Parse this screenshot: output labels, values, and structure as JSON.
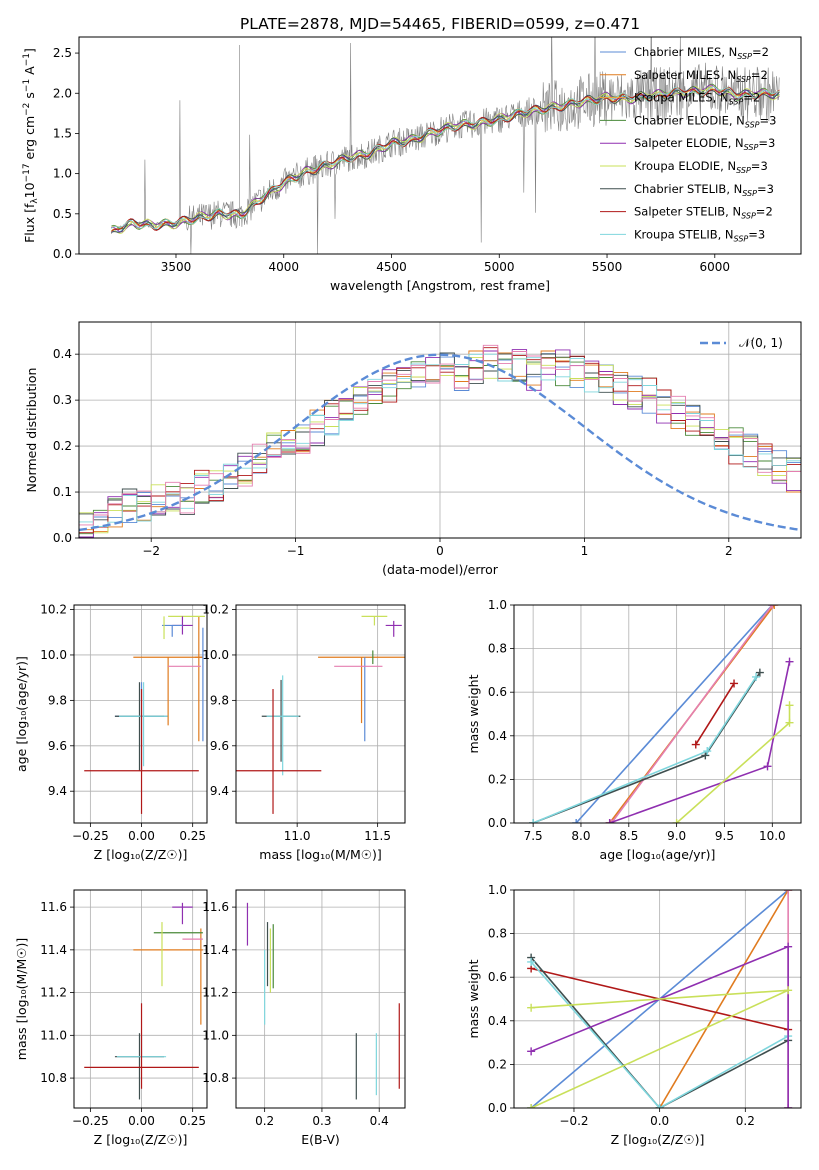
{
  "figure": {
    "title": "PLATE=2878, MJD=54465, FIBERID=0599, z=0.471"
  },
  "colors": {
    "blue": "#5b8bd6",
    "orange": "#e07b1f",
    "orange2": "#f0a63a",
    "green": "#4a8a3a",
    "purple": "#8f2fb0",
    "yellowgreen": "#c9e05a",
    "dark": "#3f4f4f",
    "red": "#b01818",
    "cyan": "#7fd6dd",
    "pink": "#e47fb0",
    "gray": "#808080",
    "dashed": "#5b8bd6"
  },
  "chart_data": [
    {
      "id": "spectrum",
      "type": "line",
      "title": "PLATE=2878, MJD=54465, FIBERID=0599, z=0.471",
      "xlabel": "wavelength [Angstrom, rest frame]",
      "ylabel_parts": {
        "a": "Flux [f",
        "b": "λ",
        "c": "10",
        "d": "−17",
        "e": " erg cm",
        "f": "−2",
        "g": " s",
        "h": "−1",
        "i": " A",
        "j": "−1",
        "k": "]"
      },
      "xlim": [
        3050,
        6400
      ],
      "ylim": [
        0,
        2.7
      ],
      "xticks": [
        3500,
        4000,
        4500,
        5000,
        5500,
        6000
      ],
      "yticks": [
        0.0,
        0.5,
        1.0,
        1.5,
        2.0,
        2.5
      ],
      "xtick_labels": [
        "3500",
        "4000",
        "4500",
        "5000",
        "5500",
        "6000"
      ],
      "ytick_labels": [
        "0.0",
        "0.5",
        "1.0",
        "1.5",
        "2.0",
        "2.5"
      ],
      "legend_placement": "upper right",
      "continuum": {
        "x": [
          3200,
          3300,
          3400,
          3500,
          3600,
          3700,
          3800,
          3900,
          4000,
          4100,
          4200,
          4300,
          4400,
          4500,
          4600,
          4700,
          4800,
          4900,
          5000,
          5100,
          5200,
          5300,
          5400,
          5500,
          5600,
          5700,
          5800,
          5900,
          6000,
          6100,
          6200,
          6300
        ],
        "y": [
          0.28,
          0.38,
          0.36,
          0.38,
          0.45,
          0.5,
          0.48,
          0.7,
          0.88,
          1.02,
          1.1,
          1.2,
          1.25,
          1.38,
          1.42,
          1.52,
          1.6,
          1.62,
          1.68,
          1.75,
          1.8,
          1.85,
          1.9,
          1.95,
          1.93,
          1.97,
          2.0,
          2.02,
          2.05,
          1.98,
          2.0,
          1.98
        ]
      },
      "series": [
        {
          "name": "Chabrier MILES",
          "nssp": "2",
          "color": "#5b8bd6"
        },
        {
          "name": "Salpeter MILES",
          "nssp": "2",
          "color": "#e07b1f"
        },
        {
          "name": "Kroupa MILES",
          "nssp": "2",
          "color": "#f0a63a"
        },
        {
          "name": "Chabrier ELODIE",
          "nssp": "3",
          "color": "#4a8a3a"
        },
        {
          "name": "Salpeter ELODIE",
          "nssp": "3",
          "color": "#8f2fb0"
        },
        {
          "name": "Kroupa ELODIE",
          "nssp": "3",
          "color": "#c9e05a"
        },
        {
          "name": "Chabrier STELIB",
          "nssp": "3",
          "color": "#3f4f4f"
        },
        {
          "name": "Salpeter STELIB",
          "nssp": "2",
          "color": "#b01818"
        },
        {
          "name": "Kroupa STELIB",
          "nssp": "3",
          "color": "#7fd6dd"
        }
      ]
    },
    {
      "id": "residuals",
      "type": "histogram",
      "xlabel": "(data-model)/error",
      "ylabel": "Normed distribution",
      "xlim": [
        -2.5,
        2.5
      ],
      "ylim": [
        0,
        0.47
      ],
      "xticks": [
        -2,
        -1,
        0,
        1,
        2
      ],
      "yticks": [
        0.0,
        0.1,
        0.2,
        0.3,
        0.4
      ],
      "xtick_labels": [
        "−2",
        "−1",
        "0",
        "1",
        "2"
      ],
      "ytick_labels": [
        "0.0",
        "0.1",
        "0.2",
        "0.3",
        "0.4"
      ],
      "legend": {
        "label": "𝒩(0, 1)",
        "placement": "upper right"
      },
      "bin_width": 0.1,
      "bins_start": -2.5,
      "base_profile": [
        0.04,
        0.05,
        0.06,
        0.07,
        0.07,
        0.08,
        0.09,
        0.09,
        0.11,
        0.12,
        0.14,
        0.15,
        0.17,
        0.19,
        0.2,
        0.22,
        0.24,
        0.26,
        0.28,
        0.29,
        0.31,
        0.33,
        0.34,
        0.35,
        0.36,
        0.37,
        0.36,
        0.37,
        0.38,
        0.37,
        0.38,
        0.36,
        0.37,
        0.37,
        0.36,
        0.35,
        0.34,
        0.33,
        0.32,
        0.31,
        0.29,
        0.27,
        0.25,
        0.24,
        0.22,
        0.2,
        0.19,
        0.17,
        0.15,
        0.14,
        0.12,
        0.11,
        0.1,
        0.09,
        0.08,
        0.07,
        0.07,
        0.06,
        0.06,
        0.05,
        0.05,
        0.05,
        0.05,
        0.04,
        0.04,
        0.04,
        0.04,
        0.04,
        0.04,
        0.05,
        0.05
      ]
    },
    {
      "id": "age_vs_Z",
      "type": "errorbar",
      "xlabel": "Z [log₁₀(Z/Z☉)]",
      "ylabel": "age  [log₁₀(age/yr)]",
      "xlim": [
        -0.33,
        0.32
      ],
      "ylim": [
        9.26,
        10.22
      ],
      "xticks": [
        -0.25,
        0.0,
        0.25
      ],
      "xtick_labels": [
        "−0.25",
        "0.00",
        "0.25"
      ],
      "yticks": [
        9.4,
        9.6,
        9.8,
        10.0,
        10.2
      ],
      "ytick_labels": [
        "9.4",
        "9.6",
        "9.8",
        "10.0",
        "10.2"
      ],
      "points": [
        {
          "x": 0.0,
          "y": 9.73,
          "xerr": 0.13,
          "yerr_lo": 0.24,
          "yerr_hi": 0.15,
          "color": "#5b8bd6"
        },
        {
          "x": -0.01,
          "y": 9.73,
          "xerr": 0.12,
          "yerr_lo": 0.24,
          "yerr_hi": 0.15,
          "color": "#3f4f4f"
        },
        {
          "x": 0.01,
          "y": 9.73,
          "xerr": 0.12,
          "yerr_lo": 0.22,
          "yerr_hi": 0.15,
          "color": "#7fd6dd"
        },
        {
          "x": 0.0,
          "y": 9.49,
          "xerr": 0.28,
          "yerr_lo": 0.19,
          "yerr_hi": 0.36,
          "color": "#b01818"
        },
        {
          "x": 0.13,
          "y": 9.99,
          "xerr": 0.17,
          "yerr_lo": 0.3,
          "yerr_hi": 0.0,
          "color": "#e07b1f"
        },
        {
          "x": 0.28,
          "y": 9.99,
          "xerr": 0.02,
          "yerr_lo": 0.37,
          "yerr_hi": 0.18,
          "color": "#e07b1f"
        },
        {
          "x": 0.22,
          "y": 10.17,
          "xerr": 0.09,
          "yerr_lo": 0.0,
          "yerr_hi": 0.0,
          "color": "#c9e05a"
        },
        {
          "x": 0.2,
          "y": 10.13,
          "xerr": 0.05,
          "yerr_lo": 0.04,
          "yerr_hi": 0.04,
          "color": "#8f2fb0"
        },
        {
          "x": 0.15,
          "y": 10.13,
          "xerr": 0.05,
          "yerr_lo": 0.05,
          "yerr_hi": 0.0,
          "color": "#5b8bd6"
        },
        {
          "x": 0.21,
          "y": 9.95,
          "xerr": 0.08,
          "yerr_lo": 0.0,
          "yerr_hi": 0.0,
          "color": "#e47fb0"
        },
        {
          "x": 0.11,
          "y": 10.17,
          "xerr": 0.0,
          "yerr_lo": 0.1,
          "yerr_hi": 0.0,
          "color": "#c9e05a"
        },
        {
          "x": 0.3,
          "y": 10.02,
          "xerr": 0.0,
          "yerr_lo": 0.4,
          "yerr_hi": 0.1,
          "color": "#5b8bd6"
        }
      ]
    },
    {
      "id": "age_vs_mass",
      "type": "errorbar",
      "xlabel": "mass [log₁₀(M/M☉)]",
      "ylabel": "",
      "xlim": [
        10.62,
        11.67
      ],
      "ylim": [
        9.26,
        10.22
      ],
      "xticks": [
        11.0,
        11.5
      ],
      "xtick_labels": [
        "11.0",
        "11.5"
      ],
      "yticks": [
        9.4,
        9.6,
        9.8,
        10.0,
        10.2
      ],
      "ytick_labels": [
        "9.4",
        "9.6",
        "9.8",
        "10.0",
        "10.2"
      ],
      "points": [
        {
          "x": 10.9,
          "y": 9.73,
          "xerr": 0.12,
          "yerr_lo": 0.2,
          "yerr_hi": 0.16,
          "color": "#3f4f4f"
        },
        {
          "x": 10.91,
          "y": 9.73,
          "xerr": 0.1,
          "yerr_lo": 0.26,
          "yerr_hi": 0.18,
          "color": "#7fd6dd"
        },
        {
          "x": 10.85,
          "y": 9.49,
          "xerr": 0.3,
          "yerr_lo": 0.19,
          "yerr_hi": 0.36,
          "color": "#b01818"
        },
        {
          "x": 11.4,
          "y": 9.99,
          "xerr": 0.27,
          "yerr_lo": 0.29,
          "yerr_hi": 0.0,
          "color": "#e07b1f"
        },
        {
          "x": 11.48,
          "y": 10.17,
          "xerr": 0.08,
          "yerr_lo": 0.04,
          "yerr_hi": 0.0,
          "color": "#c9e05a"
        },
        {
          "x": 11.6,
          "y": 10.13,
          "xerr": 0.05,
          "yerr_lo": 0.05,
          "yerr_hi": 0.02,
          "color": "#8f2fb0"
        },
        {
          "x": 11.42,
          "y": 9.99,
          "xerr": 0.0,
          "yerr_lo": 0.37,
          "yerr_hi": 0.0,
          "color": "#5b8bd6"
        },
        {
          "x": 11.38,
          "y": 9.95,
          "xerr": 0.15,
          "yerr_lo": 0.0,
          "yerr_hi": 0.0,
          "color": "#e47fb0"
        },
        {
          "x": 11.47,
          "y": 10.02,
          "xerr": 0.0,
          "yerr_lo": 0.06,
          "yerr_hi": 0.0,
          "color": "#4a8a3a"
        }
      ]
    },
    {
      "id": "weight_vs_age",
      "type": "line",
      "xlabel": "age  [log₁₀(age/yr)]",
      "ylabel": "mass weight",
      "xlim": [
        7.3,
        10.3
      ],
      "ylim": [
        0,
        1
      ],
      "xticks": [
        7.5,
        8.0,
        8.5,
        9.0,
        9.5,
        10.0
      ],
      "xtick_labels": [
        "7.5",
        "8.0",
        "8.5",
        "9.0",
        "9.5",
        "10.0"
      ],
      "yticks": [
        0.0,
        0.2,
        0.4,
        0.6,
        0.8,
        1.0
      ],
      "ytick_labels": [
        "0.0",
        "0.2",
        "0.4",
        "0.6",
        "0.8",
        "1.0"
      ],
      "series": [
        {
          "color": "#5b8bd6",
          "x": [
            7.95,
            10.0
          ],
          "y": [
            0.0,
            1.0
          ]
        },
        {
          "color": "#e07b1f",
          "x": [
            8.3,
            10.02
          ],
          "y": [
            0.0,
            1.0
          ]
        },
        {
          "color": "#e47fb0",
          "x": [
            8.32,
            10.0
          ],
          "y": [
            0.0,
            1.0
          ]
        },
        {
          "color": "#b01818",
          "x": [
            9.2,
            9.6
          ],
          "y": [
            0.36,
            0.64
          ]
        },
        {
          "color": "#3f4f4f",
          "x": [
            7.5,
            9.3,
            9.87
          ],
          "y": [
            0.0,
            0.31,
            0.69
          ]
        },
        {
          "color": "#7fd6dd",
          "x": [
            7.5,
            9.32,
            9.83
          ],
          "y": [
            0.0,
            0.33,
            0.67
          ]
        },
        {
          "color": "#8f2fb0",
          "x": [
            8.3,
            9.95,
            10.18
          ],
          "y": [
            0.0,
            0.26,
            0.74
          ]
        },
        {
          "color": "#c9e05a",
          "x": [
            9.0,
            10.18,
            10.18
          ],
          "y": [
            0.0,
            0.46,
            0.54
          ]
        }
      ]
    },
    {
      "id": "mass_vs_Z",
      "type": "errorbar",
      "xlabel": "Z [log₁₀(Z/Z☉)]",
      "ylabel": "mass [log₁₀(M/M☉)]",
      "xlim": [
        -0.33,
        0.32
      ],
      "ylim": [
        10.66,
        11.68
      ],
      "xticks": [
        -0.25,
        0.0,
        0.25
      ],
      "xtick_labels": [
        "−0.25",
        "0.00",
        "0.25"
      ],
      "yticks": [
        10.8,
        11.0,
        11.2,
        11.4,
        11.6
      ],
      "ytick_labels": [
        "10.8",
        "11.0",
        "11.2",
        "11.4",
        "11.6"
      ],
      "points": [
        {
          "x": -0.01,
          "y": 10.9,
          "xerr": 0.12,
          "yerr_lo": 0.2,
          "yerr_hi": 0.11,
          "color": "#3f4f4f"
        },
        {
          "x": 0.0,
          "y": 10.9,
          "xerr": 0.12,
          "yerr_lo": 0.0,
          "yerr_hi": 0.1,
          "color": "#7fd6dd"
        },
        {
          "x": 0.0,
          "y": 10.85,
          "xerr": 0.28,
          "yerr_lo": 0.1,
          "yerr_hi": 0.3,
          "color": "#b01818"
        },
        {
          "x": 0.13,
          "y": 11.4,
          "xerr": 0.17,
          "yerr_lo": 0.0,
          "yerr_hi": 0.0,
          "color": "#e07b1f"
        },
        {
          "x": 0.29,
          "y": 11.4,
          "xerr": 0.0,
          "yerr_lo": 0.35,
          "yerr_hi": 0.1,
          "color": "#e07b1f"
        },
        {
          "x": 0.18,
          "y": 11.48,
          "xerr": 0.12,
          "yerr_lo": 0.0,
          "yerr_hi": 0.0,
          "color": "#4a8a3a"
        },
        {
          "x": 0.1,
          "y": 11.38,
          "xerr": 0.0,
          "yerr_lo": 0.15,
          "yerr_hi": 0.15,
          "color": "#c9e05a"
        },
        {
          "x": 0.2,
          "y": 11.6,
          "xerr": 0.05,
          "yerr_lo": 0.08,
          "yerr_hi": 0.02,
          "color": "#8f2fb0"
        },
        {
          "x": 0.25,
          "y": 11.45,
          "xerr": 0.05,
          "yerr_lo": 0.0,
          "yerr_hi": 0.0,
          "color": "#e47fb0"
        }
      ]
    },
    {
      "id": "mass_vs_ebv",
      "type": "errorbar",
      "xlabel": "E(B-V)",
      "ylabel": "",
      "xlim": [
        0.15,
        0.445
      ],
      "ylim": [
        10.66,
        11.68
      ],
      "xticks": [
        0.2,
        0.3,
        0.4
      ],
      "xtick_labels": [
        "0.2",
        "0.3",
        "0.4"
      ],
      "yticks": [
        10.8,
        11.0,
        11.2,
        11.4,
        11.6
      ],
      "ytick_labels": [
        "10.8",
        "11.0",
        "11.2",
        "11.4",
        "11.6"
      ],
      "points": [
        {
          "x": 0.17,
          "y": 11.52,
          "xerr": 0.0,
          "yerr_lo": 0.1,
          "yerr_hi": 0.1,
          "color": "#8f2fb0"
        },
        {
          "x": 0.2,
          "y": 11.3,
          "xerr": 0.0,
          "yerr_lo": 0.25,
          "yerr_hi": 0.1,
          "color": "#7fd6dd"
        },
        {
          "x": 0.205,
          "y": 11.38,
          "xerr": 0.0,
          "yerr_lo": 0.15,
          "yerr_hi": 0.15,
          "color": "#3f4f4f"
        },
        {
          "x": 0.21,
          "y": 11.35,
          "xerr": 0.0,
          "yerr_lo": 0.15,
          "yerr_hi": 0.15,
          "color": "#c9e05a"
        },
        {
          "x": 0.215,
          "y": 11.35,
          "xerr": 0.0,
          "yerr_lo": 0.13,
          "yerr_hi": 0.17,
          "color": "#4a8a3a"
        },
        {
          "x": 0.36,
          "y": 10.85,
          "xerr": 0.0,
          "yerr_lo": 0.15,
          "yerr_hi": 0.16,
          "color": "#3f4f4f"
        },
        {
          "x": 0.395,
          "y": 10.9,
          "xerr": 0.0,
          "yerr_lo": 0.18,
          "yerr_hi": 0.11,
          "color": "#7fd6dd"
        },
        {
          "x": 0.435,
          "y": 10.9,
          "xerr": 0.0,
          "yerr_lo": 0.15,
          "yerr_hi": 0.25,
          "color": "#b01818"
        }
      ]
    },
    {
      "id": "weight_vs_Z",
      "type": "line",
      "xlabel": "Z [log₁₀(Z/Z☉)]",
      "ylabel": "mass weight",
      "xlim": [
        -0.34,
        0.33
      ],
      "ylim": [
        0,
        1
      ],
      "xticks": [
        -0.2,
        0.0,
        0.2
      ],
      "xtick_labels": [
        "−0.2",
        "0.0",
        "0.2"
      ],
      "yticks": [
        0.0,
        0.2,
        0.4,
        0.6,
        0.8,
        1.0
      ],
      "ytick_labels": [
        "0.0",
        "0.2",
        "0.4",
        "0.6",
        "0.8",
        "1.0"
      ],
      "series": [
        {
          "color": "#5b8bd6",
          "x": [
            -0.3,
            0.3
          ],
          "y": [
            0.0,
            1.0
          ]
        },
        {
          "color": "#e07b1f",
          "x": [
            0.0,
            0.3
          ],
          "y": [
            0.0,
            1.0
          ]
        },
        {
          "color": "#e47fb0",
          "x": [
            0.3,
            0.3
          ],
          "y": [
            0.0,
            1.0
          ]
        },
        {
          "color": "#b01818",
          "x": [
            -0.3,
            0.3
          ],
          "y": [
            0.64,
            0.36
          ]
        },
        {
          "color": "#3f4f4f",
          "x": [
            -0.3,
            0.0,
            0.3
          ],
          "y": [
            0.69,
            0.0,
            0.31
          ]
        },
        {
          "color": "#7fd6dd",
          "x": [
            -0.3,
            0.0,
            0.3
          ],
          "y": [
            0.67,
            0.0,
            0.33
          ]
        },
        {
          "color": "#8f2fb0",
          "x": [
            -0.3,
            0.3,
            0.3
          ],
          "y": [
            0.26,
            0.74,
            0.0
          ]
        },
        {
          "color": "#c9e05a",
          "x": [
            -0.3,
            0.3,
            -0.3
          ],
          "y": [
            0.0,
            0.54,
            0.46
          ]
        }
      ]
    }
  ]
}
